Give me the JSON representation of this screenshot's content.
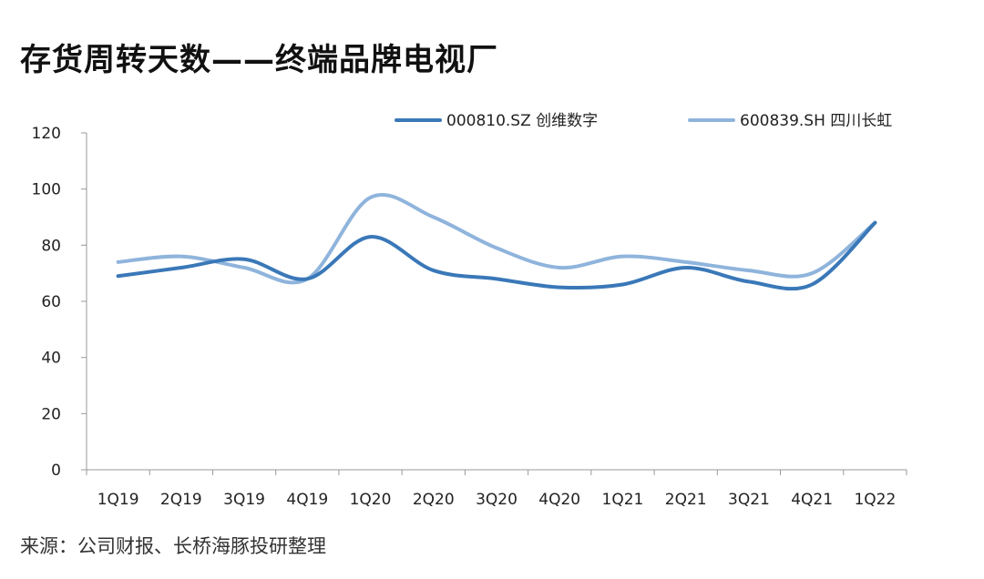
{
  "title": "存货周转天数——终端品牌电视厂",
  "source": "来源：公司财报、长桥海豚投研整理",
  "chart_data": {
    "type": "line",
    "categories": [
      "1Q19",
      "2Q19",
      "3Q19",
      "4Q19",
      "1Q20",
      "2Q20",
      "3Q20",
      "4Q20",
      "1Q21",
      "2Q21",
      "3Q21",
      "4Q21",
      "1Q22"
    ],
    "ylim": [
      0,
      120
    ],
    "yticks": [
      0,
      20,
      40,
      60,
      80,
      100,
      120
    ],
    "grid": false,
    "legend_position": "top-right",
    "series": [
      {
        "name": "000810.SZ 创维数字",
        "color": "#3a78b8",
        "values": [
          69,
          72,
          75,
          68,
          83,
          71,
          68,
          65,
          66,
          72,
          67,
          66,
          88
        ]
      },
      {
        "name": "600839.SH 四川长虹",
        "color": "#8fb4dc",
        "values": [
          74,
          76,
          72,
          68,
          97,
          90,
          79,
          72,
          76,
          74,
          71,
          70,
          88
        ]
      }
    ]
  }
}
